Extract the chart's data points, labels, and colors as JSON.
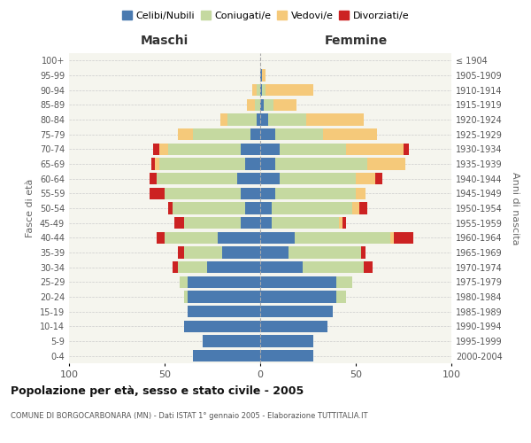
{
  "age_groups": [
    "0-4",
    "5-9",
    "10-14",
    "15-19",
    "20-24",
    "25-29",
    "30-34",
    "35-39",
    "40-44",
    "45-49",
    "50-54",
    "55-59",
    "60-64",
    "65-69",
    "70-74",
    "75-79",
    "80-84",
    "85-89",
    "90-94",
    "95-99",
    "100+"
  ],
  "birth_years": [
    "2000-2004",
    "1995-1999",
    "1990-1994",
    "1985-1989",
    "1980-1984",
    "1975-1979",
    "1970-1974",
    "1965-1969",
    "1960-1964",
    "1955-1959",
    "1950-1954",
    "1945-1949",
    "1940-1944",
    "1935-1939",
    "1930-1934",
    "1925-1929",
    "1920-1924",
    "1915-1919",
    "1910-1914",
    "1905-1909",
    "≤ 1904"
  ],
  "colors": {
    "celibi": "#4a7ab0",
    "coniugati": "#c5d9a0",
    "vedovi": "#f5c97a",
    "divorziati": "#cc2222"
  },
  "maschi": {
    "celibi": [
      35,
      30,
      40,
      38,
      38,
      38,
      28,
      20,
      22,
      10,
      8,
      10,
      12,
      8,
      10,
      5,
      2,
      0,
      0,
      0,
      0
    ],
    "coniugati": [
      0,
      0,
      0,
      0,
      2,
      4,
      15,
      20,
      28,
      30,
      38,
      40,
      42,
      45,
      38,
      30,
      15,
      3,
      2,
      0,
      0
    ],
    "vedovi": [
      0,
      0,
      0,
      0,
      0,
      0,
      0,
      0,
      0,
      0,
      0,
      0,
      0,
      2,
      5,
      8,
      4,
      4,
      2,
      0,
      0
    ],
    "divorziati": [
      0,
      0,
      0,
      0,
      0,
      0,
      3,
      3,
      4,
      5,
      2,
      8,
      4,
      2,
      3,
      0,
      0,
      0,
      0,
      0,
      0
    ]
  },
  "femmine": {
    "celibi": [
      28,
      28,
      35,
      38,
      40,
      40,
      22,
      15,
      18,
      6,
      6,
      8,
      10,
      8,
      10,
      8,
      4,
      2,
      1,
      1,
      0
    ],
    "coniugati": [
      0,
      0,
      0,
      0,
      5,
      8,
      32,
      38,
      50,
      35,
      42,
      42,
      40,
      48,
      35,
      25,
      20,
      5,
      2,
      0,
      0
    ],
    "vedovi": [
      0,
      0,
      0,
      0,
      0,
      0,
      0,
      0,
      2,
      2,
      4,
      5,
      10,
      20,
      30,
      28,
      30,
      12,
      25,
      2,
      0
    ],
    "divorziati": [
      0,
      0,
      0,
      0,
      0,
      0,
      5,
      2,
      10,
      2,
      4,
      0,
      4,
      0,
      3,
      0,
      0,
      0,
      0,
      0,
      0
    ]
  },
  "xlim": 100,
  "title": "Popolazione per età, sesso e stato civile - 2005",
  "subtitle": "COMUNE DI BORGOCARBONARA (MN) - Dati ISTAT 1° gennaio 2005 - Elaborazione TUTTITALIA.IT",
  "ylabel_left": "Fasce di età",
  "ylabel_right": "Anni di nascita",
  "xlabel_left": "Maschi",
  "xlabel_right": "Femmine",
  "legend_labels": [
    "Celibi/Nubili",
    "Coniugati/e",
    "Vedovi/e",
    "Divorziati/e"
  ]
}
